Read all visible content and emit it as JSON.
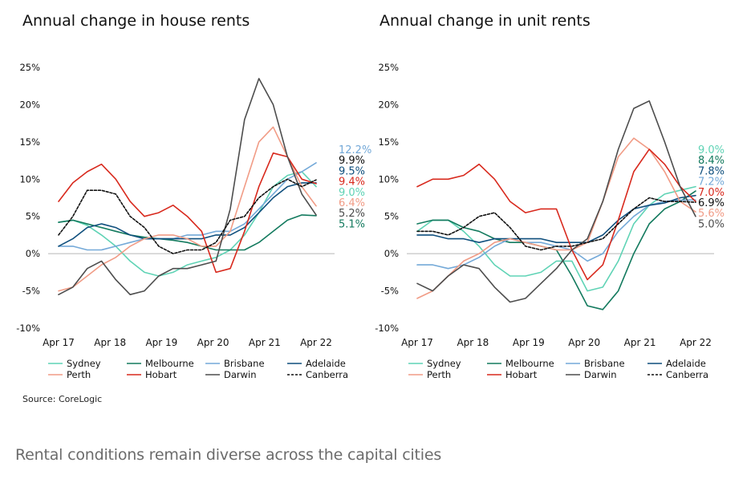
{
  "source": "Source: CoreLogic",
  "caption": "Rental conditions remain diverse across the capital cities",
  "colors": {
    "Sydney": "#5fd3b5",
    "Melbourne": "#137a5e",
    "Brisbane": "#74a9d8",
    "Adelaide": "#0f4f7d",
    "Perth": "#f19c86",
    "Hobart": "#d8291d",
    "Darwin": "#4d4d4d",
    "Canberra": "#111111"
  },
  "legend_order": [
    "Sydney",
    "Melbourne",
    "Brisbane",
    "Adelaide",
    "Perth",
    "Hobart",
    "Darwin",
    "Canberra"
  ],
  "chart_data": [
    {
      "type": "line",
      "title": "Annual change in house rents",
      "xlabel": "",
      "ylabel": "",
      "x_ticks": [
        "Apr 17",
        "Apr 18",
        "Apr 19",
        "Apr 20",
        "Apr 21",
        "Apr 22"
      ],
      "x_start": "Apr 17",
      "x_end": "Apr 22",
      "ylim": [
        -10,
        25
      ],
      "y_ticks": [
        "-10%",
        "-5%",
        "0%",
        "5%",
        "10%",
        "15%",
        "20%",
        "25%"
      ],
      "zero_line": true,
      "series": [
        {
          "name": "Sydney",
          "values": [
            4.2,
            4.5,
            3.8,
            2.5,
            1.0,
            -1.0,
            -2.5,
            -3.0,
            -2.5,
            -1.5,
            -1.0,
            -0.5,
            0.5,
            2.5,
            5.5,
            9.0,
            10.5,
            11.0,
            9.0
          ],
          "end_label": "9.0%"
        },
        {
          "name": "Melbourne",
          "values": [
            4.2,
            4.5,
            4.0,
            3.5,
            3.0,
            2.5,
            2.2,
            2.0,
            1.8,
            1.5,
            1.0,
            0.5,
            0.5,
            0.5,
            1.5,
            3.0,
            4.5,
            5.2,
            5.1
          ],
          "end_label": "5.1%"
        },
        {
          "name": "Brisbane",
          "values": [
            1.0,
            1.0,
            0.5,
            0.5,
            1.0,
            1.5,
            2.0,
            2.0,
            2.0,
            2.5,
            2.5,
            3.0,
            3.0,
            4.0,
            6.0,
            8.0,
            10.0,
            11.0,
            12.2
          ],
          "end_label": "12.2%"
        },
        {
          "name": "Adelaide",
          "values": [
            1.0,
            2.0,
            3.5,
            4.0,
            3.5,
            2.5,
            2.0,
            2.0,
            2.0,
            2.0,
            2.0,
            2.5,
            2.5,
            3.5,
            5.5,
            7.5,
            9.0,
            9.5,
            9.5
          ],
          "end_label": "9.5%"
        },
        {
          "name": "Perth",
          "values": [
            -5.0,
            -4.5,
            -3.0,
            -1.5,
            -0.5,
            1.0,
            2.0,
            2.5,
            2.5,
            2.0,
            1.0,
            1.0,
            3.0,
            9.0,
            15.0,
            17.0,
            13.0,
            9.0,
            6.4
          ],
          "end_label": "6.4%"
        },
        {
          "name": "Hobart",
          "values": [
            7.0,
            9.5,
            11.0,
            12.0,
            10.0,
            7.0,
            5.0,
            5.5,
            6.5,
            5.0,
            3.0,
            -2.5,
            -2.0,
            3.0,
            9.0,
            13.5,
            13.0,
            10.0,
            9.4
          ],
          "end_label": "9.4%"
        },
        {
          "name": "Darwin",
          "values": [
            -5.5,
            -4.5,
            -2.0,
            -1.0,
            -3.5,
            -5.5,
            -5.0,
            -3.0,
            -2.0,
            -2.0,
            -1.5,
            -1.0,
            6.0,
            18.0,
            23.5,
            20.0,
            13.0,
            8.0,
            5.2
          ],
          "end_label": "5.2%"
        },
        {
          "name": "Canberra",
          "values": [
            2.5,
            5.0,
            8.5,
            8.5,
            8.0,
            5.0,
            3.5,
            1.0,
            0.0,
            0.5,
            0.5,
            1.5,
            4.5,
            5.0,
            7.5,
            9.0,
            10.0,
            9.0,
            9.9
          ],
          "end_label": "9.9%"
        }
      ]
    },
    {
      "type": "line",
      "title": "Annual change in unit rents",
      "xlabel": "",
      "ylabel": "",
      "x_ticks": [
        "Apr 17",
        "Apr 18",
        "Apr 19",
        "Apr 20",
        "Apr 21",
        "Apr 22"
      ],
      "x_start": "Apr 17",
      "x_end": "Apr 22",
      "ylim": [
        -10,
        25
      ],
      "y_ticks": [
        "-10%",
        "-5%",
        "0%",
        "5%",
        "10%",
        "15%",
        "20%",
        "25%"
      ],
      "zero_line": true,
      "series": [
        {
          "name": "Sydney",
          "values": [
            3.0,
            4.5,
            4.5,
            3.0,
            1.0,
            -1.5,
            -3.0,
            -3.0,
            -2.5,
            -1.0,
            -1.0,
            -5.0,
            -4.5,
            -1.0,
            4.0,
            6.5,
            8.0,
            8.5,
            9.0
          ],
          "end_label": "9.0%"
        },
        {
          "name": "Melbourne",
          "values": [
            4.0,
            4.5,
            4.5,
            3.5,
            3.0,
            2.0,
            1.5,
            1.5,
            1.0,
            0.5,
            -3.0,
            -7.0,
            -7.5,
            -5.0,
            0.0,
            4.0,
            6.0,
            7.0,
            8.4
          ],
          "end_label": "8.4%"
        },
        {
          "name": "Brisbane",
          "values": [
            -1.5,
            -1.5,
            -2.0,
            -1.5,
            -0.5,
            1.0,
            2.0,
            1.5,
            1.5,
            1.0,
            0.5,
            -1.0,
            0.0,
            3.0,
            5.0,
            6.5,
            7.0,
            7.2,
            7.2
          ],
          "end_label": "7.2%"
        },
        {
          "name": "Adelaide",
          "values": [
            2.5,
            2.5,
            2.0,
            2.0,
            1.5,
            2.0,
            2.0,
            2.0,
            2.0,
            1.5,
            1.5,
            1.5,
            2.5,
            4.5,
            6.0,
            6.5,
            6.8,
            7.5,
            7.8
          ],
          "end_label": "7.8%"
        },
        {
          "name": "Perth",
          "values": [
            -6.0,
            -5.0,
            -3.0,
            -1.0,
            0.0,
            1.5,
            2.0,
            1.5,
            1.0,
            0.5,
            0.5,
            1.5,
            7.0,
            13.0,
            15.5,
            14.0,
            11.0,
            7.0,
            5.6
          ],
          "end_label": "5.6%"
        },
        {
          "name": "Hobart",
          "values": [
            9.0,
            10.0,
            10.0,
            10.5,
            12.0,
            10.0,
            7.0,
            5.5,
            6.0,
            6.0,
            0.5,
            -3.5,
            -1.5,
            4.5,
            11.0,
            14.0,
            12.0,
            9.0,
            7.0
          ],
          "end_label": "7.0%"
        },
        {
          "name": "Darwin",
          "values": [
            -4.0,
            -5.0,
            -3.0,
            -1.5,
            -2.0,
            -4.5,
            -6.5,
            -6.0,
            -4.0,
            -2.0,
            0.5,
            2.0,
            7.0,
            14.0,
            19.5,
            20.5,
            15.0,
            9.0,
            5.0
          ],
          "end_label": "5.0%"
        },
        {
          "name": "Canberra",
          "values": [
            3.0,
            3.0,
            2.5,
            3.5,
            5.0,
            5.5,
            3.5,
            1.0,
            0.5,
            1.0,
            1.0,
            1.5,
            2.0,
            4.0,
            6.0,
            7.5,
            7.0,
            7.0,
            6.9
          ],
          "end_label": "6.9%"
        }
      ]
    }
  ]
}
